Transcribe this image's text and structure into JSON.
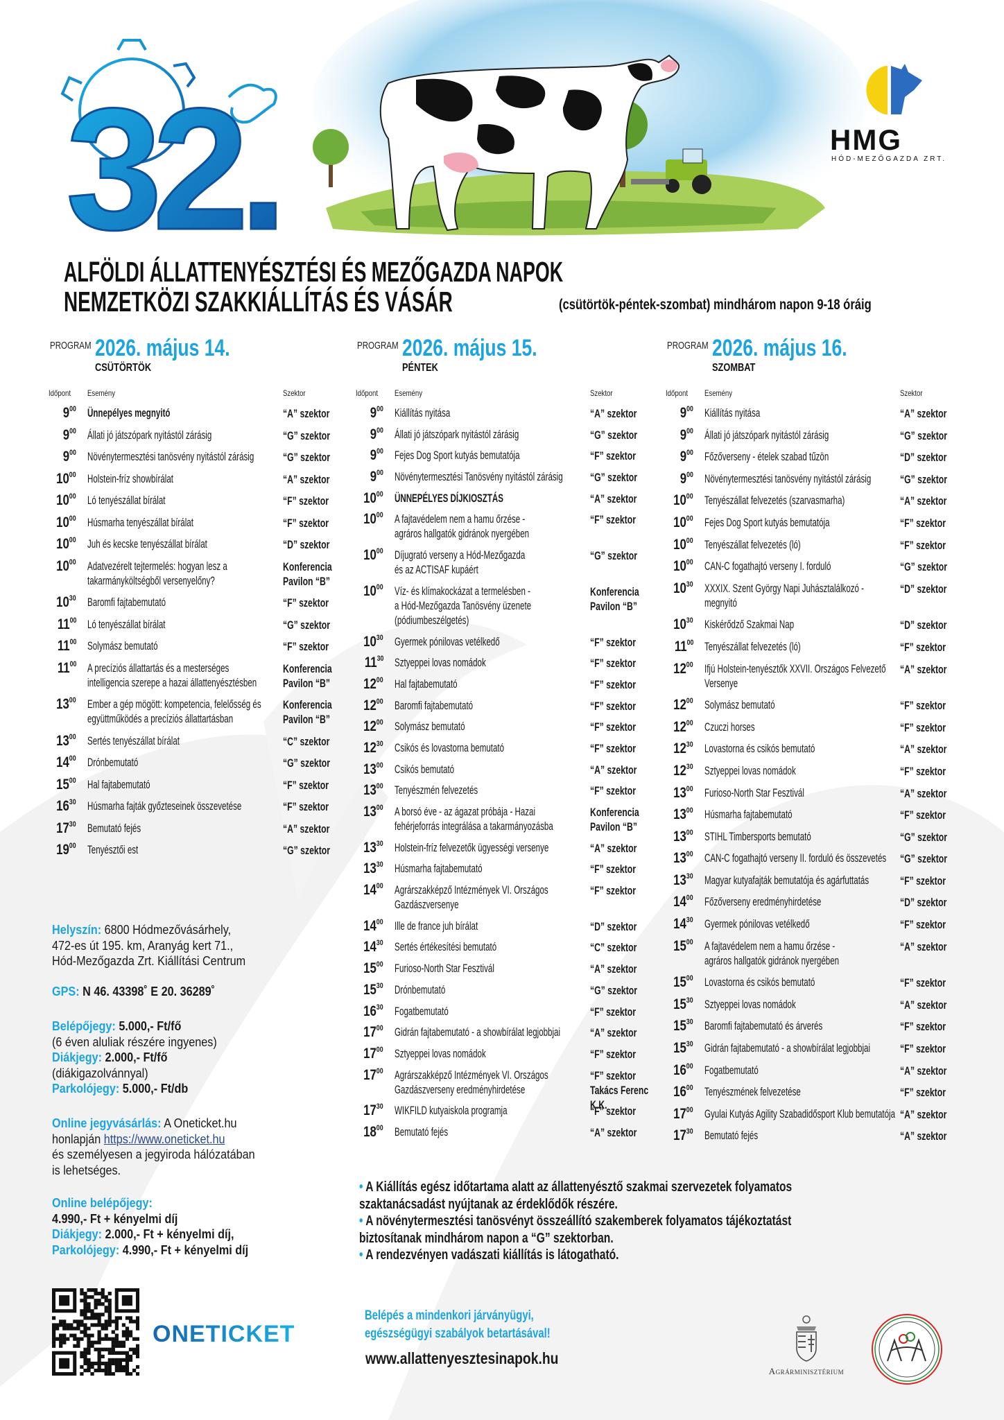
{
  "logo_number": "32.",
  "brand": {
    "name": "HMG",
    "subtitle": "HÓD-MEZŐGAZDA ZRT."
  },
  "title": {
    "line1": "ALFÖLDI ÁLLATTENYÉSZTÉSI ÉS MEZŐGAZDA NAPOK",
    "line2": "NEMZETKÖZI SZAKKIÁLLÍTÁS ÉS VÁSÁR"
  },
  "event_date": {
    "main": "2026. május 14-15-16.",
    "sub": "(csütörtök-péntek-szombat) mindhárom napon 9-18 óráig"
  },
  "colors": {
    "accent_light": "#1ca4de",
    "accent_dark": "#1560ad",
    "logo_yellow": "#f5d10f",
    "logo_blue": "#2b6bc0"
  },
  "days": [
    {
      "program_label": "PROGRAM",
      "date": "2026. május 14.",
      "weekday": "CSÜTÖRTÖK",
      "headers": {
        "time": "Időpont",
        "event": "Esemény",
        "sector": "Szektor"
      },
      "rows": [
        {
          "h": "9",
          "m": "00",
          "event": "Ünnepélyes megnyitó",
          "sector": "“A” szektor",
          "emphasis": true
        },
        {
          "h": "9",
          "m": "00",
          "event": "Állati jó játszópark nyitástól zárásig",
          "sector": "“G” szektor"
        },
        {
          "h": "9",
          "m": "00",
          "event": "Növénytermesztési tanösvény nyitástól zárásig",
          "sector": "“G” szektor"
        },
        {
          "h": "10",
          "m": "00",
          "event": "Holstein-fríz showbírálat",
          "sector": "“A” szektor"
        },
        {
          "h": "10",
          "m": "00",
          "event": "Ló tenyészállat bírálat",
          "sector": "“F” szektor"
        },
        {
          "h": "10",
          "m": "00",
          "event": "Húsmarha tenyészállat bírálat",
          "sector": "“F” szektor"
        },
        {
          "h": "10",
          "m": "00",
          "event": "Juh és kecske tenyészállat bírálat",
          "sector": "“D” szektor"
        },
        {
          "h": "10",
          "m": "00",
          "event": "Adatvezérelt tejtermelés: hogyan lesz a\ntakarmányköltségből versenyelőny?",
          "sector": "Konferencia\nPavilon “B”"
        },
        {
          "h": "10",
          "m": "30",
          "event": "Baromfi fajtabemutató",
          "sector": "“F” szektor"
        },
        {
          "h": "11",
          "m": "00",
          "event": "Ló tenyészállat bírálat",
          "sector": "“G” szektor"
        },
        {
          "h": "11",
          "m": "00",
          "event": "Solymász bemutató",
          "sector": "“F” szektor"
        },
        {
          "h": "11",
          "m": "00",
          "event": "A precíziós állattartás és a mesterséges\nintelligencia szerepe a hazai állattenyésztésben",
          "sector": "Konferencia\nPavilon “B”"
        },
        {
          "h": "13",
          "m": "00",
          "event": "Ember a gép mögött: kompetencia, felelősség és\negyüttműködés a precíziós állattartásban",
          "sector": "Konferencia\nPavilon “B”"
        },
        {
          "h": "13",
          "m": "00",
          "event": "Sertés tenyészállat bírálat",
          "sector": "“C” szektor"
        },
        {
          "h": "14",
          "m": "00",
          "event": "Drónbemutató",
          "sector": "“G” szektor"
        },
        {
          "h": "15",
          "m": "00",
          "event": "Hal fajtabemutató",
          "sector": "“F” szektor"
        },
        {
          "h": "16",
          "m": "30",
          "event": "Húsmarha fajták győzteseinek összevetése",
          "sector": "“F” szektor"
        },
        {
          "h": "17",
          "m": "30",
          "event": "Bemutató fejés",
          "sector": "“A” szektor"
        },
        {
          "h": "19",
          "m": "00",
          "event": "Tenyésztői est",
          "sector": "“G” szektor"
        }
      ]
    },
    {
      "program_label": "PROGRAM",
      "date": "2026. május 15.",
      "weekday": "PÉNTEK",
      "headers": {
        "time": "Időpont",
        "event": "Esemény",
        "sector": "Szektor"
      },
      "rows": [
        {
          "h": "9",
          "m": "00",
          "event": "Kiállítás nyitása",
          "sector": "“A” szektor"
        },
        {
          "h": "9",
          "m": "00",
          "event": "Állati jó játszópark nyitástól zárásig",
          "sector": "“G” szektor"
        },
        {
          "h": "9",
          "m": "00",
          "event": "Fejes Dog Sport kutyás bemutatója",
          "sector": "“F” szektor"
        },
        {
          "h": "9",
          "m": "00",
          "event": "Növénytermesztési Tanösvény nyitástól zárásig",
          "sector": "“G” szektor"
        },
        {
          "h": "10",
          "m": "00",
          "event": "ÜNNEPÉLYES DÍJKIOSZTÁS",
          "sector": "“A” szektor",
          "emphasis": true
        },
        {
          "h": "10",
          "m": "00",
          "event": "A fajtavédelem nem a hamu őrzése -\nagráros hallgatók gidránok nyergében",
          "sector": "“F” szektor"
        },
        {
          "h": "10",
          "m": "00",
          "event": "Díjugrató verseny a Hód-Mezőgazda\nés az ACTISAF kupáért",
          "sector": "“G” szektor"
        },
        {
          "h": "10",
          "m": "00",
          "event": "Víz- és klímakockázat a termelésben -\na Hód-Mezőgazda Tanösvény üzenete\n(pódiumbeszélgetés)",
          "sector": "Konferencia\nPavilon “B”"
        },
        {
          "h": "10",
          "m": "30",
          "event": "Gyermek pónilovas vetélkedő",
          "sector": "“F” szektor"
        },
        {
          "h": "11",
          "m": "30",
          "event": "Sztyeppei lovas nomádok",
          "sector": "“F” szektor"
        },
        {
          "h": "12",
          "m": "00",
          "event": "Hal fajtabemutató",
          "sector": "“F” szektor"
        },
        {
          "h": "12",
          "m": "00",
          "event": "Baromfi fajtabemutató",
          "sector": "“F” szektor"
        },
        {
          "h": "12",
          "m": "00",
          "event": "Solymász bemutató",
          "sector": "“F” szektor"
        },
        {
          "h": "12",
          "m": "30",
          "event": "Csikós és lovastorna bemutató",
          "sector": "“F” szektor"
        },
        {
          "h": "13",
          "m": "00",
          "event": "Csikós bemutató",
          "sector": "“A” szektor"
        },
        {
          "h": "13",
          "m": "00",
          "event": "Tenyészmén felvezetés",
          "sector": "“F” szektor"
        },
        {
          "h": "13",
          "m": "00",
          "event": "A borsó éve - az ágazat próbája - Hazai\nfehérjeforrás integrálása a takarmányozásba",
          "sector": "Konferencia\nPavilon “B”"
        },
        {
          "h": "13",
          "m": "30",
          "event": "Holstein-fríz felvezetők ügyességi versenye",
          "sector": "“A” szektor"
        },
        {
          "h": "13",
          "m": "30",
          "event": "Húsmarha fajtabemutató",
          "sector": "“F” szektor"
        },
        {
          "h": "14",
          "m": "00",
          "event": "Agrárszakképző Intézmények VI. Országos\nGazdászversenye",
          "sector": "“F” szektor"
        },
        {
          "h": "14",
          "m": "00",
          "event": "Ille de france  juh bírálat",
          "sector": "“D” szektor"
        },
        {
          "h": "14",
          "m": "30",
          "event": "Sertés értékesítési bemutató",
          "sector": "“C” szektor"
        },
        {
          "h": "15",
          "m": "00",
          "event": "Furioso-North Star Fesztivál",
          "sector": "“A” szektor"
        },
        {
          "h": "15",
          "m": "30",
          "event": "Drónbemutató",
          "sector": "“G” szektor"
        },
        {
          "h": "16",
          "m": "30",
          "event": "Fogatbemutató",
          "sector": "“F” szektor"
        },
        {
          "h": "17",
          "m": "00",
          "event": "Gidrán fajtabemutató - a showbírálat legjobbjai",
          "sector": "“A” szektor"
        },
        {
          "h": "17",
          "m": "00",
          "event": "Sztyeppei lovas nomádok",
          "sector": "“F” szektor"
        },
        {
          "h": "17",
          "m": "00",
          "event": "Agrárszakképző Intézmények VI. Országos\nGazdászverseny eredményhirdetése",
          "sector": "“F” szektor\nTakács Ferenc K.K."
        },
        {
          "h": "17",
          "m": "30",
          "event": "WIKFILD kutyaiskola programja",
          "sector": "“F” szektor"
        },
        {
          "h": "18",
          "m": "00",
          "event": "Bemutató fejés",
          "sector": "“A” szektor"
        }
      ]
    },
    {
      "program_label": "PROGRAM",
      "date": "2026. május 16.",
      "weekday": "SZOMBAT",
      "headers": {
        "time": "Időpont",
        "event": "Esemény",
        "sector": "Szektor"
      },
      "rows": [
        {
          "h": "9",
          "m": "00",
          "event": "Kiállítás nyitása",
          "sector": "“A” szektor"
        },
        {
          "h": "9",
          "m": "00",
          "event": "Állati jó játszópark nyitástól zárásig",
          "sector": "“G” szektor"
        },
        {
          "h": "9",
          "m": "00",
          "event": "Főzőverseny - ételek szabad tűzön",
          "sector": "“D” szektor"
        },
        {
          "h": "9",
          "m": "00",
          "event": "Növénytermesztési tanösvény nyitástól zárásig",
          "sector": "“G” szektor"
        },
        {
          "h": "10",
          "m": "00",
          "event": "Tenyészállat felvezetés (szarvasmarha)",
          "sector": "“A” szektor"
        },
        {
          "h": "10",
          "m": "00",
          "event": "Fejes Dog Sport kutyás bemutatója",
          "sector": "“F” szektor"
        },
        {
          "h": "10",
          "m": "00",
          "event": "Tenyészállat felvezetés (ló)",
          "sector": "“F” szektor"
        },
        {
          "h": "10",
          "m": "00",
          "event": "CAN-C fogathajtó verseny I. forduló",
          "sector": "“G” szektor"
        },
        {
          "h": "10",
          "m": "30",
          "event": "XXXIX. Szent György Napi Juhásztalálkozó -\nmegnyitó",
          "sector": "“D” szektor"
        },
        {
          "h": "10",
          "m": "30",
          "event": "Kiskérődző Szakmai Nap",
          "sector": "“D” szektor"
        },
        {
          "h": "11",
          "m": "00",
          "event": "Tenyészállat felvezetés (ló)",
          "sector": "“F” szektor"
        },
        {
          "h": "12",
          "m": "00",
          "event": "Ifjú Holstein-tenyésztők  XXVII. Országos Felvezető\nVersenye",
          "sector": "“A” szektor"
        },
        {
          "h": "12",
          "m": "00",
          "event": "Solymász bemutató",
          "sector": "“F” szektor"
        },
        {
          "h": "12",
          "m": "00",
          "event": "Czuczi horses",
          "sector": "“F” szektor"
        },
        {
          "h": "12",
          "m": "30",
          "event": "Lovastorna és csikós bemutató",
          "sector": "“A” szektor"
        },
        {
          "h": "12",
          "m": "30",
          "event": "Sztyeppei lovas nomádok",
          "sector": "“F” szektor"
        },
        {
          "h": "13",
          "m": "00",
          "event": "Furioso-North Star Fesztivál",
          "sector": "“A” szektor"
        },
        {
          "h": "13",
          "m": "00",
          "event": "Húsmarha fajtabemutató",
          "sector": "“F” szektor"
        },
        {
          "h": "13",
          "m": "00",
          "event": "STIHL Timbersports bemutató",
          "sector": "“G” szektor"
        },
        {
          "h": "13",
          "m": "00",
          "event": "CAN-C fogathajtó verseny II. forduló és összevetés",
          "sector": "“G” szektor"
        },
        {
          "h": "13",
          "m": "30",
          "event": "Magyar kutyafajták bemutatója és agárfuttatás",
          "sector": "“F” szektor"
        },
        {
          "h": "14",
          "m": "00",
          "event": "Főzőverseny eredményhirdetése",
          "sector": "“D” szektor"
        },
        {
          "h": "14",
          "m": "30",
          "event": "Gyermek pónilovas vetélkedő",
          "sector": "“F” szektor"
        },
        {
          "h": "15",
          "m": "00",
          "event": "A fajtavédelem nem a hamu őrzése -\nagráros hallgatók gidránok nyergében",
          "sector": "“A” szektor"
        },
        {
          "h": "15",
          "m": "00",
          "event": "Lovastorna és csikós bemutató",
          "sector": "“F” szektor"
        },
        {
          "h": "15",
          "m": "30",
          "event": "Sztyeppei lovas nomádok",
          "sector": "“A” szektor"
        },
        {
          "h": "15",
          "m": "30",
          "event": "Baromfi fajtabemutató és árverés",
          "sector": "“F” szektor"
        },
        {
          "h": "15",
          "m": "30",
          "event": "Gidrán fajtabemutató - a showbírálat legjobbjai",
          "sector": "“F” szektor"
        },
        {
          "h": "16",
          "m": "00",
          "event": "Fogatbemutató",
          "sector": "“A” szektor"
        },
        {
          "h": "16",
          "m": "00",
          "event": "Tenyészmének felvezetése",
          "sector": "“F” szektor"
        },
        {
          "h": "17",
          "m": "00",
          "event": "Gyulai Kutyás Agility Szabadidősport Klub bemutatója",
          "sector": "“A” szektor"
        },
        {
          "h": "17",
          "m": "30",
          "event": "Bemutató fejés",
          "sector": "“A” szektor"
        }
      ]
    }
  ],
  "info": {
    "location_label": "Helyszín:",
    "location_line1": "6800 Hódmezővásárhely,",
    "location_line2": "472-es út 195. km, Aranyág kert 71.,",
    "location_line3": "Hód-Mezőgazda Zrt. Kiállítási Centrum",
    "gps_label": "GPS:",
    "gps_value": "N 46. 43398˚ E 20. 36289˚",
    "ticket_label": "Belépőjegy:",
    "ticket_price": "5.000,- Ft/fő",
    "ticket_note": "(6 éven aluliak részére ingyenes)",
    "student_label": "Diákjegy:",
    "student_price": "2.000,- Ft/fő",
    "student_note": "(diákigazolvánnyal)",
    "parking_label": "Parkolójegy:",
    "parking_price": "5.000,- Ft/db",
    "online_label": "Online jegyvásárlás:",
    "online_text1": "A Oneticket.hu",
    "online_text2": "honlapján",
    "online_link": "https://www.oneticket.hu",
    "online_text3": "és személyesen a jegyiroda hálózatában",
    "online_text4": "is lehetséges.",
    "online_ticket_label": "Online belépőjegy:",
    "online_ticket_price": "4.990,- Ft + kényelmi díj",
    "online_student_label": "Diákjegy:",
    "online_student_price": "2.000,- Ft + kényelmi díj,",
    "online_parking_label": "Parkolójegy:",
    "online_parking_price": "4.990,- Ft + kényelmi díj"
  },
  "oneticket_logo": "ONETICKET",
  "bullets": [
    "A Kiállítás egész időtartama alatt az állattenyésztő szakmai szervezetek folyamatos\nszaktanácsadást nyújtanak az érdeklődők részére.",
    "A növénytermesztési tanösvényt összeállító szakemberek folyamatos tájékoztatást\nbiztosítanak mindhárom napon a “G” szektorban.",
    "A rendezvényen vadászati kiállítás is látogatható."
  ],
  "footer": {
    "notice": "Belépés a mindenkori járványügyi,\negészségügyi szabályok betartásával!",
    "website": "www.allattenyesztesinapok.hu",
    "ministry": "Agrárminisztérium",
    "association_seal": "MAGYAR ÁLLATTENYÉSZTŐK SZÖVETSÉGE 1830"
  }
}
